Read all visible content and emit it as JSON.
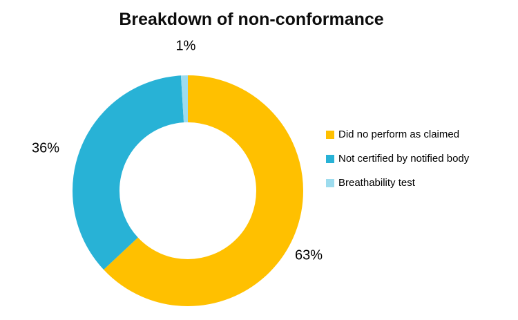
{
  "chart_data": {
    "type": "pie",
    "subtype": "donut",
    "title": "Breakdown of non-conformance",
    "categories": [
      "Did no perform as claimed",
      "Not certified by notified body",
      "Breathability test"
    ],
    "values": [
      63,
      36,
      1
    ],
    "unit": "%",
    "slice_labels": [
      "63%",
      "36%",
      "1%"
    ],
    "colors": [
      "#FFC000",
      "#28B2D6",
      "#9DDCEE"
    ],
    "legend_position": "right",
    "start_angle_deg": 0,
    "direction": "clockwise",
    "inner_radius_ratio": 0.59,
    "background_color": "#FFFFFF",
    "text_color": "#000000"
  }
}
